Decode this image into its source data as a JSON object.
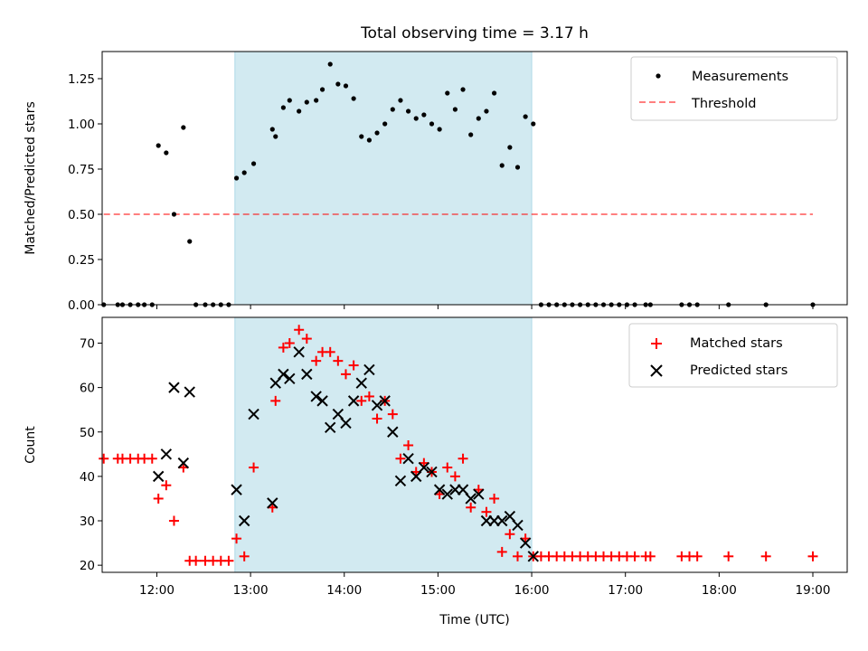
{
  "title": "Total observing time = 3.17 h",
  "xlabel": "Time (UTC)",
  "colors": {
    "window": "#add8e6",
    "measurement": "#000000",
    "threshold": "#ff0000",
    "matched": "#ff0000",
    "predicted": "#000000"
  },
  "chart_data": [
    {
      "type": "scatter",
      "ylabel": "Matched/Predicted stars",
      "xlim": [
        "11:25",
        "19:22"
      ],
      "ylim": [
        0,
        1.4
      ],
      "yticks": [
        0.0,
        0.25,
        0.5,
        0.75,
        1.0,
        1.25
      ],
      "ytick_labels": [
        "0.00",
        "0.25",
        "0.50",
        "0.75",
        "1.00",
        "1.25"
      ],
      "xticks": [
        "12:00",
        "13:00",
        "14:00",
        "15:00",
        "16:00",
        "17:00",
        "18:00",
        "19:00"
      ],
      "observing_window": [
        "12:50",
        "16:00"
      ],
      "legend": {
        "location": "upper right",
        "entries": [
          "Measurements",
          "Threshold"
        ]
      },
      "threshold": {
        "name": "Threshold",
        "y": 0.5,
        "x_range": [
          "11:26",
          "19:00"
        ],
        "style": "dashed"
      },
      "series": [
        {
          "name": "Measurements",
          "points": [
            [
              "11:26",
              0
            ],
            [
              "11:35",
              0
            ],
            [
              "11:38",
              0
            ],
            [
              "11:43",
              0
            ],
            [
              "11:48",
              0
            ],
            [
              "11:52",
              0
            ],
            [
              "11:57",
              0
            ],
            [
              "12:01",
              0.88
            ],
            [
              "12:06",
              0.84
            ],
            [
              "12:11",
              0.5
            ],
            [
              "12:17",
              0.98
            ],
            [
              "12:21",
              0.35
            ],
            [
              "12:25",
              0
            ],
            [
              "12:31",
              0
            ],
            [
              "12:36",
              0
            ],
            [
              "12:41",
              0
            ],
            [
              "12:46",
              0
            ],
            [
              "12:51",
              0.7
            ],
            [
              "12:56",
              0.73
            ],
            [
              "13:02",
              0.78
            ],
            [
              "13:14",
              0.97
            ],
            [
              "13:16",
              0.93
            ],
            [
              "13:21",
              1.09
            ],
            [
              "13:25",
              1.13
            ],
            [
              "13:31",
              1.07
            ],
            [
              "13:36",
              1.12
            ],
            [
              "13:42",
              1.13
            ],
            [
              "13:46",
              1.19
            ],
            [
              "13:51",
              1.33
            ],
            [
              "13:56",
              1.22
            ],
            [
              "14:01",
              1.21
            ],
            [
              "14:06",
              1.14
            ],
            [
              "14:11",
              0.93
            ],
            [
              "14:16",
              0.91
            ],
            [
              "14:21",
              0.95
            ],
            [
              "14:26",
              1.0
            ],
            [
              "14:31",
              1.08
            ],
            [
              "14:36",
              1.13
            ],
            [
              "14:41",
              1.07
            ],
            [
              "14:46",
              1.03
            ],
            [
              "14:51",
              1.05
            ],
            [
              "14:56",
              1.0
            ],
            [
              "15:01",
              0.97
            ],
            [
              "15:06",
              1.17
            ],
            [
              "15:11",
              1.08
            ],
            [
              "15:16",
              1.19
            ],
            [
              "15:21",
              0.94
            ],
            [
              "15:26",
              1.03
            ],
            [
              "15:31",
              1.07
            ],
            [
              "15:36",
              1.17
            ],
            [
              "15:41",
              0.77
            ],
            [
              "15:46",
              0.87
            ],
            [
              "15:51",
              0.76
            ],
            [
              "15:56",
              1.04
            ],
            [
              "16:01",
              1.0
            ],
            [
              "16:06",
              0
            ],
            [
              "16:11",
              0
            ],
            [
              "16:16",
              0
            ],
            [
              "16:21",
              0
            ],
            [
              "16:26",
              0
            ],
            [
              "16:31",
              0
            ],
            [
              "16:36",
              0
            ],
            [
              "16:41",
              0
            ],
            [
              "16:46",
              0
            ],
            [
              "16:51",
              0
            ],
            [
              "16:56",
              0
            ],
            [
              "17:01",
              0
            ],
            [
              "17:06",
              0
            ],
            [
              "17:13",
              0
            ],
            [
              "17:16",
              0
            ],
            [
              "17:36",
              0
            ],
            [
              "17:41",
              0
            ],
            [
              "17:46",
              0
            ],
            [
              "18:06",
              0
            ],
            [
              "18:30",
              0
            ],
            [
              "19:00",
              0
            ]
          ]
        }
      ]
    },
    {
      "type": "scatter",
      "ylabel": "Count",
      "xlim": [
        "11:25",
        "19:22"
      ],
      "ylim": [
        18.4,
        75.8
      ],
      "yticks": [
        20,
        30,
        40,
        50,
        60,
        70
      ],
      "ytick_labels": [
        "20",
        "30",
        "40",
        "50",
        "60",
        "70"
      ],
      "xticks": [
        "12:00",
        "13:00",
        "14:00",
        "15:00",
        "16:00",
        "17:00",
        "18:00",
        "19:00"
      ],
      "xtick_labels": [
        "12:00",
        "13:00",
        "14:00",
        "15:00",
        "16:00",
        "17:00",
        "18:00",
        "19:00"
      ],
      "observing_window": [
        "12:50",
        "16:00"
      ],
      "legend": {
        "location": "upper right",
        "entries": [
          "Matched stars",
          "Predicted stars"
        ]
      },
      "series": [
        {
          "name": "Matched stars",
          "marker": "plus",
          "points": [
            [
              "11:26",
              44
            ],
            [
              "11:35",
              44
            ],
            [
              "11:38",
              44
            ],
            [
              "11:43",
              44
            ],
            [
              "11:48",
              44
            ],
            [
              "11:52",
              44
            ],
            [
              "11:57",
              44
            ],
            [
              "12:01",
              35
            ],
            [
              "12:06",
              38
            ],
            [
              "12:11",
              30
            ],
            [
              "12:17",
              42
            ],
            [
              "12:21",
              21
            ],
            [
              "12:25",
              21
            ],
            [
              "12:31",
              21
            ],
            [
              "12:36",
              21
            ],
            [
              "12:41",
              21
            ],
            [
              "12:46",
              21
            ],
            [
              "12:51",
              26
            ],
            [
              "12:56",
              22
            ],
            [
              "13:02",
              42
            ],
            [
              "13:14",
              33
            ],
            [
              "13:16",
              57
            ],
            [
              "13:21",
              69
            ],
            [
              "13:25",
              70
            ],
            [
              "13:31",
              73
            ],
            [
              "13:36",
              71
            ],
            [
              "13:42",
              66
            ],
            [
              "13:46",
              68
            ],
            [
              "13:51",
              68
            ],
            [
              "13:56",
              66
            ],
            [
              "14:01",
              63
            ],
            [
              "14:06",
              65
            ],
            [
              "14:11",
              57
            ],
            [
              "14:16",
              58
            ],
            [
              "14:21",
              53
            ],
            [
              "14:26",
              57
            ],
            [
              "14:31",
              54
            ],
            [
              "14:36",
              44
            ],
            [
              "14:41",
              47
            ],
            [
              "14:46",
              41
            ],
            [
              "14:51",
              43
            ],
            [
              "14:56",
              41
            ],
            [
              "15:01",
              36
            ],
            [
              "15:06",
              42
            ],
            [
              "15:11",
              40
            ],
            [
              "15:16",
              44
            ],
            [
              "15:21",
              33
            ],
            [
              "15:26",
              37
            ],
            [
              "15:31",
              32
            ],
            [
              "15:36",
              35
            ],
            [
              "15:41",
              23
            ],
            [
              "15:46",
              27
            ],
            [
              "15:51",
              22
            ],
            [
              "15:56",
              26
            ],
            [
              "16:01",
              22
            ],
            [
              "16:06",
              22
            ],
            [
              "16:11",
              22
            ],
            [
              "16:16",
              22
            ],
            [
              "16:21",
              22
            ],
            [
              "16:26",
              22
            ],
            [
              "16:31",
              22
            ],
            [
              "16:36",
              22
            ],
            [
              "16:41",
              22
            ],
            [
              "16:46",
              22
            ],
            [
              "16:51",
              22
            ],
            [
              "16:56",
              22
            ],
            [
              "17:01",
              22
            ],
            [
              "17:06",
              22
            ],
            [
              "17:13",
              22
            ],
            [
              "17:16",
              22
            ],
            [
              "17:36",
              22
            ],
            [
              "17:41",
              22
            ],
            [
              "17:46",
              22
            ],
            [
              "18:06",
              22
            ],
            [
              "18:30",
              22
            ],
            [
              "19:00",
              22
            ]
          ]
        },
        {
          "name": "Predicted stars",
          "marker": "x",
          "points": [
            [
              "12:01",
              40
            ],
            [
              "12:06",
              45
            ],
            [
              "12:11",
              60
            ],
            [
              "12:17",
              43
            ],
            [
              "12:21",
              59
            ],
            [
              "12:51",
              37
            ],
            [
              "12:56",
              30
            ],
            [
              "13:02",
              54
            ],
            [
              "13:14",
              34
            ],
            [
              "13:16",
              61
            ],
            [
              "13:21",
              63
            ],
            [
              "13:25",
              62
            ],
            [
              "13:31",
              68
            ],
            [
              "13:36",
              63
            ],
            [
              "13:42",
              58
            ],
            [
              "13:46",
              57
            ],
            [
              "13:51",
              51
            ],
            [
              "13:56",
              54
            ],
            [
              "14:01",
              52
            ],
            [
              "14:06",
              57
            ],
            [
              "14:11",
              61
            ],
            [
              "14:16",
              64
            ],
            [
              "14:21",
              56
            ],
            [
              "14:26",
              57
            ],
            [
              "14:31",
              50
            ],
            [
              "14:36",
              39
            ],
            [
              "14:41",
              44
            ],
            [
              "14:46",
              40
            ],
            [
              "14:51",
              42
            ],
            [
              "14:56",
              41
            ],
            [
              "15:01",
              37
            ],
            [
              "15:06",
              36
            ],
            [
              "15:11",
              37
            ],
            [
              "15:16",
              37
            ],
            [
              "15:21",
              35
            ],
            [
              "15:26",
              36
            ],
            [
              "15:31",
              30
            ],
            [
              "15:36",
              30
            ],
            [
              "15:41",
              30
            ],
            [
              "15:46",
              31
            ],
            [
              "15:51",
              29
            ],
            [
              "15:56",
              25
            ],
            [
              "16:01",
              22
            ]
          ]
        }
      ]
    }
  ]
}
